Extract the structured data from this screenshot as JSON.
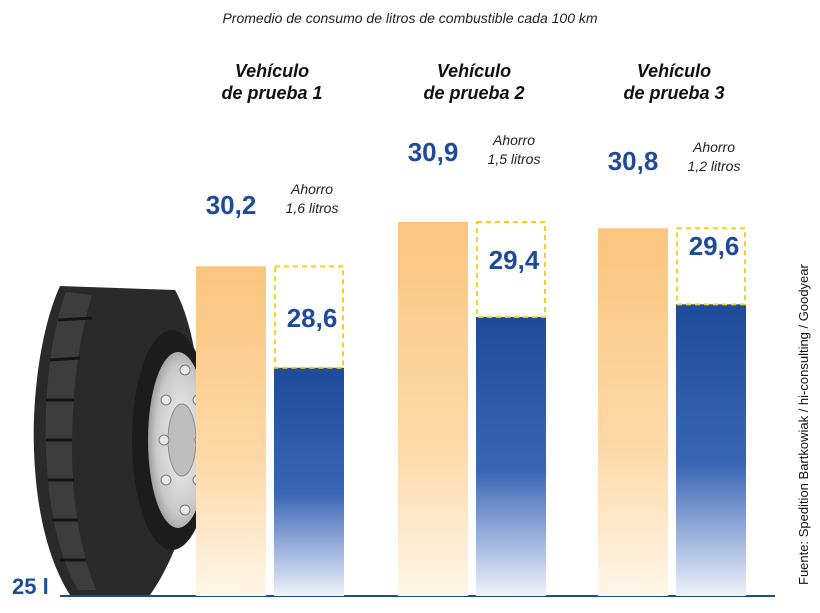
{
  "chart_data": {
    "type": "bar",
    "title": "Promedio de consumo de litros de combustible cada 100 km",
    "categories": [
      "Vehículo de prueba 1",
      "Vehículo de prueba 2",
      "Vehículo de prueba 3"
    ],
    "category_lines": [
      [
        "Vehículo",
        "de prueba 1"
      ],
      [
        "Vehículo",
        "de prueba 2"
      ],
      [
        "Vehículo",
        "de prueba 3"
      ]
    ],
    "series": [
      {
        "values": [
          30.2,
          30.9,
          30.8
        ],
        "labels": [
          "30,2",
          "30,9",
          "30,8"
        ],
        "color": "#fbc57d"
      },
      {
        "values": [
          28.6,
          29.4,
          29.6
        ],
        "labels": [
          "28,6",
          "29,4",
          "29,6"
        ],
        "color": "#1d4b99"
      }
    ],
    "savings": [
      {
        "word": "Ahorro",
        "amount": "1,6 litros"
      },
      {
        "word": "Ahorro",
        "amount": "1,5 litros"
      },
      {
        "word": "Ahorro",
        "amount": "1,2 litros"
      }
    ],
    "baseline_label": "25 l",
    "ymin": 25,
    "source": "Fuente: Spedition Bartkowiak / hi-consulting / Goodyear",
    "colors": {
      "orange": "#fbc57d",
      "blue": "#1d4b99",
      "dash": "#f2d21b",
      "axis": "#1d4b99"
    }
  }
}
